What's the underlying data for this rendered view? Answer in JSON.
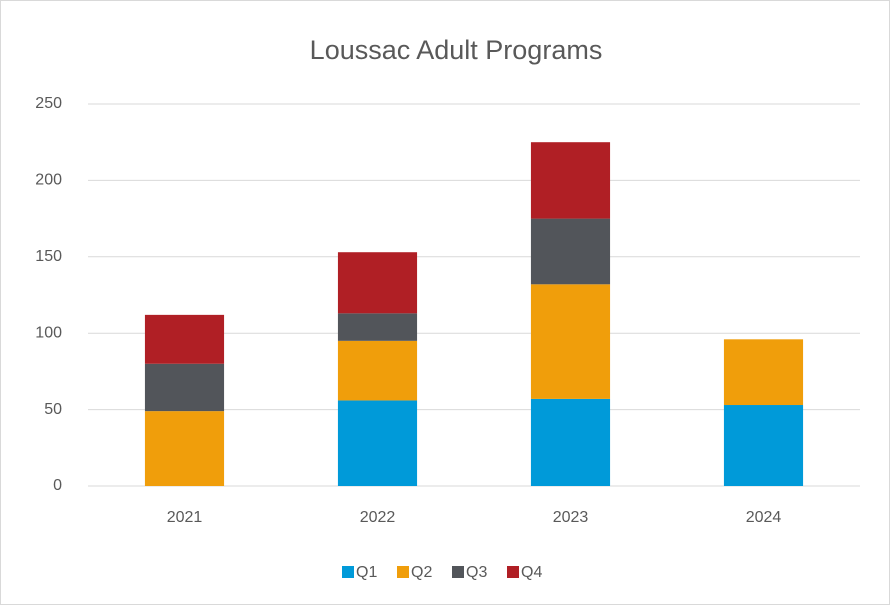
{
  "chart_data": {
    "type": "stacked_bar",
    "title": "Loussac Adult Programs",
    "categories": [
      "2021",
      "2022",
      "2023",
      "2024"
    ],
    "series": [
      {
        "name": "Q1",
        "color": "#009ad9",
        "values": [
          0,
          56,
          57,
          53
        ]
      },
      {
        "name": "Q2",
        "color": "#f09e0b",
        "values": [
          49,
          39,
          75,
          43
        ]
      },
      {
        "name": "Q3",
        "color": "#52555a",
        "values": [
          31,
          18,
          43,
          0
        ]
      },
      {
        "name": "Q4",
        "color": "#b01f25",
        "values": [
          32,
          40,
          50,
          0
        ]
      }
    ],
    "ylim": [
      0,
      250
    ],
    "yticks": [
      0,
      50,
      100,
      150,
      200,
      250
    ],
    "grid": true,
    "legend": "bottom"
  }
}
